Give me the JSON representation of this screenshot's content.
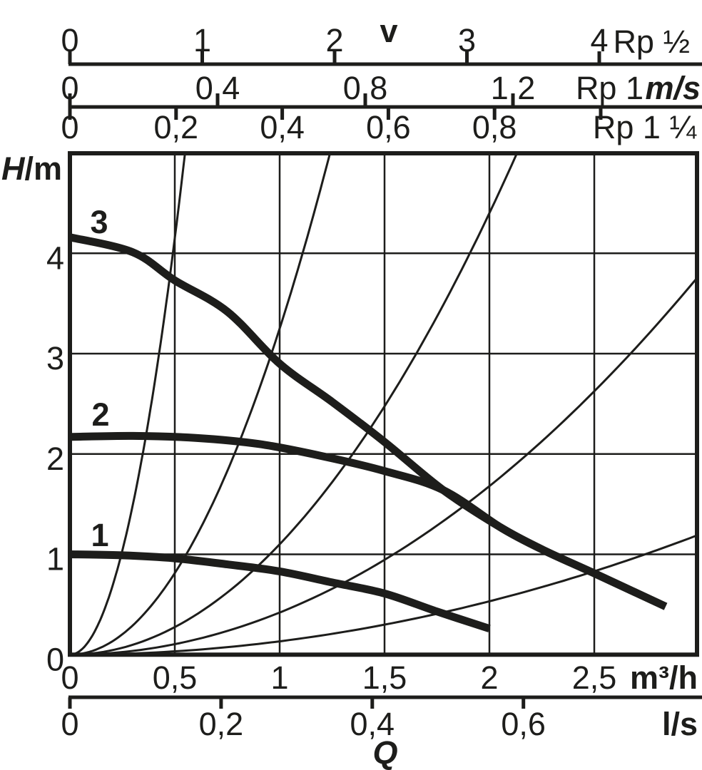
{
  "ink_color": "#1d1d1b",
  "background_color": "#ffffff",
  "labels": {
    "top_axis_title": "v",
    "y_axis_title_symbol": "H",
    "y_axis_title_unit": "/m",
    "flow_axis_title": "Q",
    "velocity_unit": "m/s",
    "flow_unit_m3h": "m³/h",
    "flow_unit_ls": "l/s",
    "scale_rp_half": "Rp ½",
    "scale_rp_1": "Rp 1",
    "scale_rp_1_quarter": "Rp 1 ¼"
  },
  "chart_data": {
    "type": "line",
    "title": "v",
    "xlabel": "Q",
    "ylabel": "H/m",
    "grid": true,
    "y_axis": {
      "title": "H/m",
      "tick_labels": [
        "0",
        "1",
        "2",
        "3",
        "4"
      ],
      "tick_values": [
        0,
        1,
        2,
        3,
        4
      ],
      "range": [
        0,
        5
      ]
    },
    "x_axis_m3h": {
      "unit": "m³/h",
      "tick_labels": [
        "0",
        "0,5",
        "1",
        "1,5",
        "2",
        "2,5"
      ],
      "tick_values": [
        0,
        0.5,
        1,
        1.5,
        2,
        2.5
      ],
      "range": [
        0,
        2.99
      ]
    },
    "x_axis_ls": {
      "unit": "l/s",
      "tick_labels": [
        "0",
        "0,2",
        "0,4",
        "0,6"
      ],
      "tick_values": [
        0,
        0.2,
        0.4,
        0.6
      ]
    },
    "top_velocity_scales": {
      "title": "v",
      "unit": "m/s",
      "scales": [
        {
          "name": "Rp ½",
          "tick_labels": [
            "0",
            "1",
            "2",
            "3",
            "4"
          ],
          "tick_values": [
            0,
            1,
            2,
            3,
            4
          ]
        },
        {
          "name": "Rp 1",
          "tick_labels": [
            "0",
            "0,4",
            "0,8",
            "1,2"
          ],
          "tick_values": [
            0,
            0.4,
            0.8,
            1.2
          ]
        },
        {
          "name": "Rp 1 ¼",
          "tick_labels": [
            "0",
            "0,2",
            "0,4",
            "0,6",
            "0,8",
            ""
          ],
          "tick_values": [
            0,
            0.2,
            0.4,
            0.6,
            0.8,
            1.0
          ]
        }
      ]
    },
    "pump_curves": [
      {
        "label": "1",
        "points_q_h": [
          [
            0,
            1.0
          ],
          [
            0.25,
            0.99
          ],
          [
            0.5,
            0.96
          ],
          [
            0.75,
            0.9
          ],
          [
            1.0,
            0.83
          ],
          [
            1.25,
            0.72
          ],
          [
            1.5,
            0.61
          ],
          [
            1.75,
            0.43
          ],
          [
            2.0,
            0.26
          ]
        ]
      },
      {
        "label": "2",
        "points_q_h": [
          [
            0,
            2.17
          ],
          [
            0.3,
            2.18
          ],
          [
            0.6,
            2.16
          ],
          [
            0.9,
            2.1
          ],
          [
            1.2,
            1.98
          ],
          [
            1.5,
            1.83
          ],
          [
            1.78,
            1.64
          ],
          [
            2.06,
            1.26
          ],
          [
            2.26,
            1.04
          ],
          [
            2.49,
            0.82
          ],
          [
            2.84,
            0.48
          ]
        ]
      },
      {
        "label": "3",
        "points_q_h": [
          [
            0,
            4.16
          ],
          [
            0.3,
            4.01
          ],
          [
            0.5,
            3.73
          ],
          [
            0.75,
            3.42
          ],
          [
            1.0,
            2.9
          ],
          [
            1.25,
            2.52
          ],
          [
            1.5,
            2.12
          ],
          [
            1.78,
            1.64
          ],
          [
            2.06,
            1.26
          ],
          [
            2.26,
            1.04
          ],
          [
            2.49,
            0.82
          ],
          [
            2.84,
            0.48
          ]
        ]
      }
    ],
    "reference_curves": {
      "model": "H = k · Q² (thin unlabeled pipe-velocity reference parabolas from origin)",
      "k_values": [
        16.6,
        3.25,
        1.1,
        0.42,
        0.133
      ],
      "q_max": 2.99,
      "h_clip": 5
    }
  }
}
